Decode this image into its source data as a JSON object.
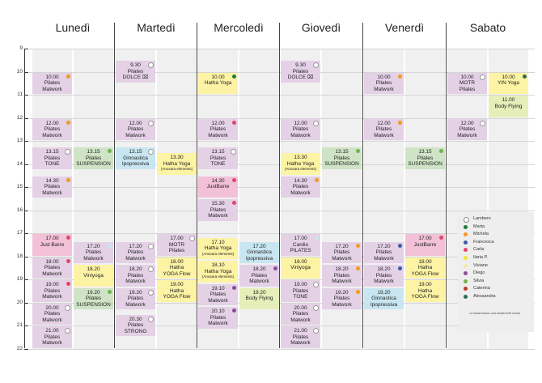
{
  "days": [
    "Lunedì",
    "Martedì",
    "Mercoledì",
    "Giovedì",
    "Venerdì",
    "Sabato"
  ],
  "hours": [
    "9",
    "10",
    "11",
    "12",
    "13",
    "14",
    "15",
    "16",
    "17",
    "18",
    "19",
    "20",
    "21",
    "22"
  ],
  "colors": {
    "lilac": "#e4d1e6",
    "pink": "#f2c1d7",
    "yellow": "#fdf3a4",
    "blue": "#c8e6f1",
    "green": "#cfe3c6",
    "lime": "#e6efb9",
    "bg": "#f0f0f0"
  },
  "instructors": [
    {
      "name": "Lambero",
      "color": "#ffffff"
    },
    {
      "name": "Marta",
      "color": "#1f7a3c"
    },
    {
      "name": "Michela",
      "color": "#f29a1f"
    },
    {
      "name": "Francesca",
      "color": "#3c5aa8"
    },
    {
      "name": "Carla",
      "color": "#e0466a"
    },
    {
      "name": "Ilaria P.",
      "color": "#f6e33a"
    },
    {
      "name": "Viviane",
      "color": "#f5e9a8"
    },
    {
      "name": "Diego",
      "color": "#8c4a9e"
    },
    {
      "name": "Silvia",
      "color": "#6fb24f"
    },
    {
      "name": "Caterina",
      "color": "#c0392b"
    },
    {
      "name": "Alessandra",
      "color": "#2f6b55"
    }
  ],
  "note": "Le lezioni hanno una durata di 60 minuti.",
  "events": [
    {
      "day": 0,
      "sub": 0,
      "lines": [
        "10.00",
        "Pilates",
        "Matwork"
      ],
      "color": "lilac",
      "dot": "#f29a1f"
    },
    {
      "day": 0,
      "sub": 0,
      "lines": [
        "12.00",
        "Pilates",
        "Matwork"
      ],
      "color": "lilac",
      "dot": "#f29a1f"
    },
    {
      "day": 0,
      "sub": 0,
      "lines": [
        "13.15",
        "Pilates",
        "TONE"
      ],
      "color": "lilac",
      "dot": "#ffffff"
    },
    {
      "day": 0,
      "sub": 1,
      "lines": [
        "13.15",
        "Pilates",
        "SUSPENSION"
      ],
      "color": "green",
      "dot": "#6fb24f"
    },
    {
      "day": 0,
      "sub": 0,
      "lines": [
        "14.30",
        "Pilates",
        "Matwork"
      ],
      "color": "lilac",
      "dot": "#f29a1f"
    },
    {
      "day": 0,
      "sub": 0,
      "lines": [
        "17.00",
        "Just Barre"
      ],
      "color": "pink",
      "dot": "#e0466a"
    },
    {
      "day": 0,
      "sub": 1,
      "lines": [
        "17.20",
        "Pilates",
        "Matwork"
      ],
      "color": "lilac",
      "dot": "#c8e6f1"
    },
    {
      "day": 0,
      "sub": 0,
      "lines": [
        "18.00",
        "Pilates",
        "Matwork"
      ],
      "color": "lilac",
      "dot": "#e0466a"
    },
    {
      "day": 0,
      "sub": 1,
      "lines": [
        "18.20",
        "Viniyoga"
      ],
      "color": "yellow",
      "dot": ""
    },
    {
      "day": 0,
      "sub": 0,
      "lines": [
        "19.00",
        "Pilates",
        "Matwork"
      ],
      "color": "lilac",
      "dot": "#e0466a"
    },
    {
      "day": 0,
      "sub": 1,
      "lines": [
        "19.20",
        "Pilates",
        "SUSPENSION"
      ],
      "color": "green",
      "dot": "#6fb24f"
    },
    {
      "day": 0,
      "sub": 0,
      "lines": [
        "20.00",
        "Pilates",
        "Matwork"
      ],
      "color": "lilac",
      "dot": "#ffffff"
    },
    {
      "day": 0,
      "sub": 0,
      "lines": [
        "21.00",
        "Pilates",
        "Matwork"
      ],
      "color": "lilac",
      "dot": "#ffffff"
    },
    {
      "day": 1,
      "sub": 0,
      "lines": [
        "9.30",
        "Pilates",
        "DOLCE ⌧"
      ],
      "color": "lilac",
      "dot": "#ffffff"
    },
    {
      "day": 1,
      "sub": 0,
      "lines": [
        "12.00",
        "Pilates",
        "Matwork"
      ],
      "color": "lilac",
      "dot": "#ffffff"
    },
    {
      "day": 1,
      "sub": 0,
      "lines": [
        "13.15",
        "Ginnastica",
        "Ipopressiva"
      ],
      "color": "blue",
      "dot": "#ffffff"
    },
    {
      "day": 1,
      "sub": 1,
      "lines": [
        "13.30",
        "Hatha Yoga",
        "(Anusara elements)"
      ],
      "color": "yellow",
      "dot": ""
    },
    {
      "day": 1,
      "sub": 0,
      "lines": [
        "17.20",
        "Pilates",
        "Matwork"
      ],
      "color": "lilac",
      "dot": "#ffffff"
    },
    {
      "day": 1,
      "sub": 1,
      "lines": [
        "17.00",
        "MOTR",
        "Pilates"
      ],
      "color": "lilac",
      "dot": "#ffffff"
    },
    {
      "day": 1,
      "sub": 0,
      "lines": [
        "18.20",
        "Pilates",
        "Matwork"
      ],
      "color": "lilac",
      "dot": "#ffffff"
    },
    {
      "day": 1,
      "sub": 1,
      "lines": [
        "18.00",
        "Hatha",
        "YOGA Flow"
      ],
      "color": "yellow",
      "dot": ""
    },
    {
      "day": 1,
      "sub": 0,
      "lines": [
        "19.20",
        "Pilates",
        "Matwork"
      ],
      "color": "lilac",
      "dot": "#ffffff"
    },
    {
      "day": 1,
      "sub": 1,
      "lines": [
        "19.00",
        "Hatha",
        "YOGA Flow"
      ],
      "color": "yellow",
      "dot": ""
    },
    {
      "day": 1,
      "sub": 0,
      "lines": [
        "20.30",
        "Pilates",
        "STRONG"
      ],
      "color": "lilac",
      "dot": "#ffffff"
    },
    {
      "day": 2,
      "sub": 0,
      "lines": [
        "10.00",
        "Hatha Yoga"
      ],
      "color": "yellow",
      "dot": "#1f7a3c"
    },
    {
      "day": 2,
      "sub": 0,
      "lines": [
        "12.00",
        "Pilates",
        "Matwork"
      ],
      "color": "lilac",
      "dot": "#e0466a"
    },
    {
      "day": 2,
      "sub": 0,
      "lines": [
        "13.15",
        "Pilates",
        "TONE"
      ],
      "color": "lilac",
      "dot": "#ffffff"
    },
    {
      "day": 2,
      "sub": 0,
      "lines": [
        "14.30",
        "JustBarre"
      ],
      "color": "pink",
      "dot": "#e0466a"
    },
    {
      "day": 2,
      "sub": 0,
      "lines": [
        "15.30",
        "Pilates",
        "Matwork"
      ],
      "color": "lilac",
      "dot": "#e0466a"
    },
    {
      "day": 2,
      "sub": 0,
      "lines": [
        "17.10",
        "Hatha Yoga",
        "(Anusara elements)"
      ],
      "color": "yellow",
      "dot": ""
    },
    {
      "day": 2,
      "sub": 1,
      "lines": [
        "17.20",
        "Ginnastica",
        "Ipopressiva"
      ],
      "color": "blue",
      "dot": ""
    },
    {
      "day": 2,
      "sub": 0,
      "lines": [
        "18.10",
        "Hatha Yoga",
        "(Anusara elements)"
      ],
      "color": "yellow",
      "dot": ""
    },
    {
      "day": 2,
      "sub": 1,
      "lines": [
        "18.20",
        "Pilates",
        "Matwork"
      ],
      "color": "lilac",
      "dot": "#8c4a9e"
    },
    {
      "day": 2,
      "sub": 0,
      "lines": [
        "19.10",
        "Pilates",
        "Matwork"
      ],
      "color": "lilac",
      "dot": "#8c4a9e"
    },
    {
      "day": 2,
      "sub": 1,
      "lines": [
        "19.20",
        "Body Flying"
      ],
      "color": "lime",
      "dot": ""
    },
    {
      "day": 2,
      "sub": 0,
      "lines": [
        "20.10",
        "Pilates",
        "Matwork"
      ],
      "color": "lilac",
      "dot": "#8c4a9e"
    },
    {
      "day": 3,
      "sub": 0,
      "lines": [
        "9.30",
        "Pilates",
        "DOLCE ⌧"
      ],
      "color": "lilac",
      "dot": "#ffffff"
    },
    {
      "day": 3,
      "sub": 0,
      "lines": [
        "12.00",
        "Pilates",
        "Matwork"
      ],
      "color": "lilac",
      "dot": "#ffffff"
    },
    {
      "day": 3,
      "sub": 0,
      "lines": [
        "13.30",
        "Hatha Yoga",
        "(Anusara elements)"
      ],
      "color": "yellow",
      "dot": ""
    },
    {
      "day": 3,
      "sub": 1,
      "lines": [
        "13.15",
        "Pilates",
        "SUSPENSION"
      ],
      "color": "green",
      "dot": "#6fb24f"
    },
    {
      "day": 3,
      "sub": 0,
      "lines": [
        "14.30",
        "Pilates",
        "Matwork"
      ],
      "color": "lilac",
      "dot": "#f29a1f"
    },
    {
      "day": 3,
      "sub": 0,
      "lines": [
        "17.00",
        "Cardio",
        "PILATES"
      ],
      "color": "lilac",
      "dot": "#c8e6f1"
    },
    {
      "day": 3,
      "sub": 1,
      "lines": [
        "17.20",
        "Pilates",
        "Matwork"
      ],
      "color": "lilac",
      "dot": "#f29a1f"
    },
    {
      "day": 3,
      "sub": 0,
      "lines": [
        "18.00",
        "Viniyoga"
      ],
      "color": "yellow",
      "dot": ""
    },
    {
      "day": 3,
      "sub": 1,
      "lines": [
        "18.20",
        "Pilates",
        "Matwork"
      ],
      "color": "lilac",
      "dot": "#f29a1f"
    },
    {
      "day": 3,
      "sub": 0,
      "lines": [
        "19.00",
        "Pilates",
        "TONE"
      ],
      "color": "lilac",
      "dot": "#ffffff"
    },
    {
      "day": 3,
      "sub": 1,
      "lines": [
        "19.20",
        "Pilates",
        "Matwork"
      ],
      "color": "lilac",
      "dot": "#f29a1f"
    },
    {
      "day": 3,
      "sub": 0,
      "lines": [
        "20.00",
        "Pilates",
        "Matwork"
      ],
      "color": "lilac",
      "dot": "#ffffff"
    },
    {
      "day": 3,
      "sub": 0,
      "lines": [
        "21.00",
        "Pilates",
        "Matwork"
      ],
      "color": "lilac",
      "dot": "#ffffff"
    },
    {
      "day": 4,
      "sub": 0,
      "lines": [
        "10.00",
        "Pilates",
        "Matwork"
      ],
      "color": "lilac",
      "dot": "#f29a1f"
    },
    {
      "day": 4,
      "sub": 0,
      "lines": [
        "12.00",
        "Pilates",
        "Matwork"
      ],
      "color": "lilac",
      "dot": "#f29a1f"
    },
    {
      "day": 4,
      "sub": 1,
      "lines": [
        "13.15",
        "Pilates",
        "SUSPENSION"
      ],
      "color": "green",
      "dot": "#6fb24f"
    },
    {
      "day": 4,
      "sub": 0,
      "lines": [
        "17.20",
        "Pilates",
        "Matwork"
      ],
      "color": "lilac",
      "dot": "#3c5aa8"
    },
    {
      "day": 4,
      "sub": 1,
      "lines": [
        "17.00",
        "JustBarre"
      ],
      "color": "pink",
      "dot": "#e0466a"
    },
    {
      "day": 4,
      "sub": 0,
      "lines": [
        "18.20",
        "Pilates",
        "Matwork"
      ],
      "color": "lilac",
      "dot": "#3c5aa8"
    },
    {
      "day": 4,
      "sub": 1,
      "lines": [
        "18.00",
        "Hatha",
        "YOGA Flow"
      ],
      "color": "yellow",
      "dot": ""
    },
    {
      "day": 4,
      "sub": 0,
      "lines": [
        "19.20",
        "Ginnastica",
        "Ipopressiva"
      ],
      "color": "blue",
      "dot": ""
    },
    {
      "day": 4,
      "sub": 1,
      "lines": [
        "19.00",
        "Hatha",
        "YOGA Flow"
      ],
      "color": "yellow",
      "dot": ""
    },
    {
      "day": 5,
      "sub": 0,
      "lines": [
        "10.00",
        "MOTR",
        "Pilates"
      ],
      "color": "lilac",
      "dot": "#ffffff"
    },
    {
      "day": 5,
      "sub": 1,
      "lines": [
        "10.00",
        "YIN Yoga"
      ],
      "color": "yellow",
      "dot": "#2f6b55"
    },
    {
      "day": 5,
      "sub": 1,
      "lines": [
        "11.00",
        "Body Flying"
      ],
      "color": "lime",
      "dot": ""
    },
    {
      "day": 5,
      "sub": 0,
      "lines": [
        "12.00",
        "Pilates",
        "Matwork"
      ],
      "color": "lilac",
      "dot": "#ffffff"
    }
  ]
}
